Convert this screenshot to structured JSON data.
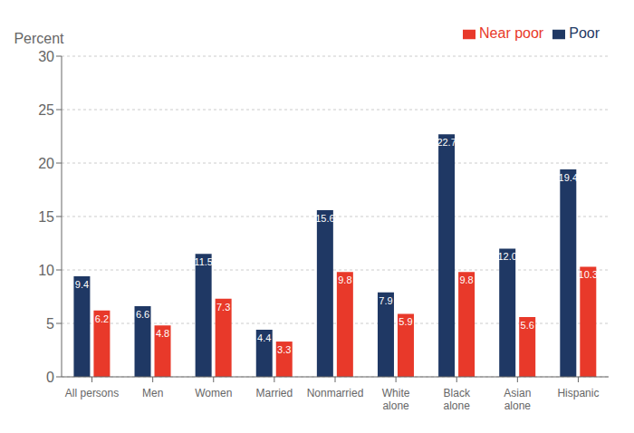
{
  "chart_data": {
    "type": "bar",
    "ylabel": "Percent",
    "categories": [
      "All persons",
      "Men",
      "Women",
      "Married",
      "Nonmarried",
      "White\nalone",
      "Black\nalone",
      "Asian\nalone",
      "Hispanic"
    ],
    "series": [
      {
        "name": "Poor",
        "color": "#1F3864",
        "values": [
          9.4,
          6.6,
          11.5,
          4.4,
          15.6,
          7.9,
          22.7,
          12.0,
          19.4
        ],
        "value_labels": [
          "9.4",
          "6.6",
          "11.5",
          "4.4",
          "15.6",
          "7.9",
          "22.7",
          "12.0",
          "19.4"
        ]
      },
      {
        "name": "Near poor",
        "color": "#E8392A",
        "values": [
          6.2,
          4.8,
          7.3,
          3.3,
          9.8,
          5.9,
          9.8,
          5.6,
          10.3
        ]
      }
    ],
    "ylim": [
      0,
      30
    ],
    "yticks": [
      0,
      5,
      10,
      15,
      20,
      25,
      30
    ],
    "grid": true,
    "legend": "upper right",
    "data_labels": true
  }
}
